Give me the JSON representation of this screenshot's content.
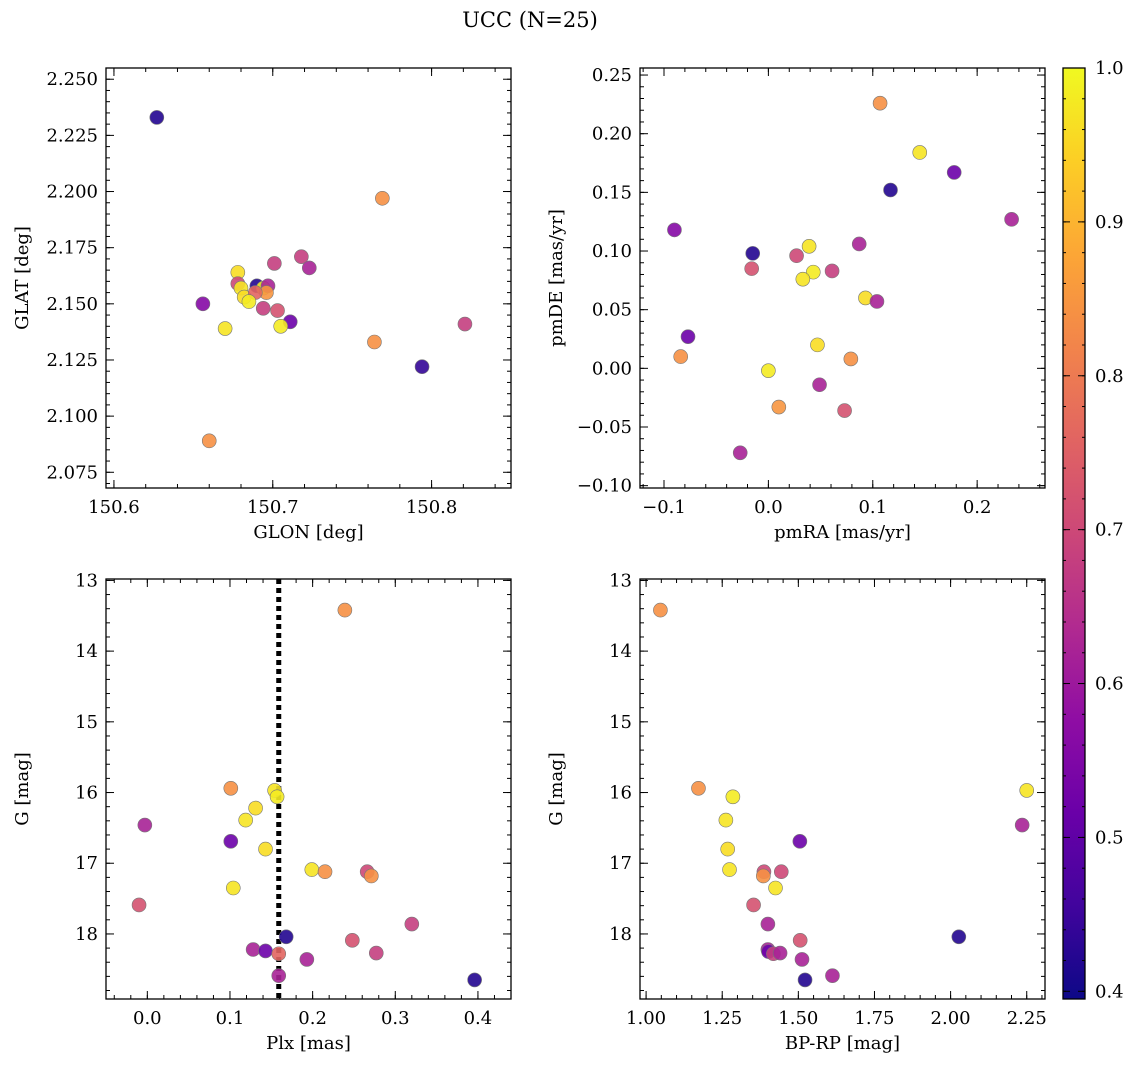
{
  "figure": {
    "title": "UCC (N=25)"
  },
  "colorbar": {
    "colormap": "plasma",
    "range": [
      0.395,
      1.0
    ],
    "ticks": [
      0.4,
      0.5,
      0.6,
      0.7,
      0.8,
      0.9,
      1.0
    ],
    "tick_labels": [
      "0.4",
      "0.5",
      "0.6",
      "0.7",
      "0.8",
      "0.9",
      "1.0"
    ]
  },
  "chart_data": [
    {
      "type": "scatter",
      "id": "sky",
      "title": "",
      "xlabel": "GLON [deg]",
      "ylabel": "GLAT [deg]",
      "xlim": [
        150.595,
        150.85
      ],
      "ylim": [
        2.068,
        2.255
      ],
      "xticks": [
        150.6,
        150.7,
        150.8
      ],
      "xtick_labels": [
        "150.6",
        "150.7",
        "150.8"
      ],
      "yticks": [
        2.075,
        2.1,
        2.125,
        2.15,
        2.175,
        2.2,
        2.225,
        2.25
      ],
      "ytick_labels": [
        "2.075",
        "2.100",
        "2.125",
        "2.150",
        "2.175",
        "2.200",
        "2.225",
        "2.250"
      ],
      "points": [
        {
          "x": 150.627,
          "y": 2.233,
          "c": 0.42
        },
        {
          "x": 150.769,
          "y": 2.197,
          "c": 0.84
        },
        {
          "x": 150.718,
          "y": 2.171,
          "c": 0.68
        },
        {
          "x": 150.723,
          "y": 2.166,
          "c": 0.62
        },
        {
          "x": 150.701,
          "y": 2.168,
          "c": 0.68
        },
        {
          "x": 150.678,
          "y": 2.164,
          "c": 0.96
        },
        {
          "x": 150.678,
          "y": 2.159,
          "c": 0.7
        },
        {
          "x": 150.68,
          "y": 2.157,
          "c": 0.97
        },
        {
          "x": 150.69,
          "y": 2.158,
          "c": 0.42
        },
        {
          "x": 150.694,
          "y": 2.157,
          "c": 0.98
        },
        {
          "x": 150.697,
          "y": 2.158,
          "c": 0.62
        },
        {
          "x": 150.682,
          "y": 2.153,
          "c": 0.96
        },
        {
          "x": 150.696,
          "y": 2.155,
          "c": 0.85
        },
        {
          "x": 150.689,
          "y": 2.155,
          "c": 0.76
        },
        {
          "x": 150.685,
          "y": 2.151,
          "c": 0.98
        },
        {
          "x": 150.656,
          "y": 2.15,
          "c": 0.56
        },
        {
          "x": 150.694,
          "y": 2.148,
          "c": 0.68
        },
        {
          "x": 150.703,
          "y": 2.147,
          "c": 0.72
        },
        {
          "x": 150.711,
          "y": 2.142,
          "c": 0.52
        },
        {
          "x": 150.705,
          "y": 2.14,
          "c": 0.98
        },
        {
          "x": 150.67,
          "y": 2.139,
          "c": 0.97
        },
        {
          "x": 150.821,
          "y": 2.141,
          "c": 0.68
        },
        {
          "x": 150.764,
          "y": 2.133,
          "c": 0.84
        },
        {
          "x": 150.794,
          "y": 2.122,
          "c": 0.44
        },
        {
          "x": 150.66,
          "y": 2.089,
          "c": 0.84
        }
      ]
    },
    {
      "type": "scatter",
      "id": "pm",
      "title": "",
      "xlabel": "pmRA [mas/yr]",
      "ylabel": "pmDE [mas/yr]",
      "xlim": [
        -0.123,
        0.265
      ],
      "ylim": [
        -0.102,
        0.256
      ],
      "xticks": [
        -0.1,
        0.0,
        0.1,
        0.2
      ],
      "xtick_labels": [
        "−0.1",
        "0.0",
        "0.1",
        "0.2"
      ],
      "yticks": [
        -0.1,
        -0.05,
        0.0,
        0.05,
        0.1,
        0.15,
        0.2,
        0.25
      ],
      "ytick_labels": [
        "−0.10",
        "−0.05",
        "0.00",
        "0.05",
        "0.10",
        "0.15",
        "0.20",
        "0.25"
      ],
      "points": [
        {
          "x": 0.107,
          "y": 0.226,
          "c": 0.84
        },
        {
          "x": 0.145,
          "y": 0.184,
          "c": 0.97
        },
        {
          "x": 0.178,
          "y": 0.167,
          "c": 0.52
        },
        {
          "x": 0.117,
          "y": 0.152,
          "c": 0.42
        },
        {
          "x": 0.233,
          "y": 0.127,
          "c": 0.62
        },
        {
          "x": -0.09,
          "y": 0.118,
          "c": 0.56
        },
        {
          "x": 0.087,
          "y": 0.106,
          "c": 0.62
        },
        {
          "x": 0.039,
          "y": 0.104,
          "c": 0.97
        },
        {
          "x": -0.015,
          "y": 0.098,
          "c": 0.42
        },
        {
          "x": 0.027,
          "y": 0.096,
          "c": 0.7
        },
        {
          "x": -0.016,
          "y": 0.085,
          "c": 0.72
        },
        {
          "x": 0.061,
          "y": 0.083,
          "c": 0.68
        },
        {
          "x": 0.043,
          "y": 0.082,
          "c": 0.98
        },
        {
          "x": 0.033,
          "y": 0.076,
          "c": 0.97
        },
        {
          "x": 0.093,
          "y": 0.06,
          "c": 0.96
        },
        {
          "x": 0.104,
          "y": 0.057,
          "c": 0.62
        },
        {
          "x": -0.077,
          "y": 0.027,
          "c": 0.52
        },
        {
          "x": 0.047,
          "y": 0.02,
          "c": 0.96
        },
        {
          "x": -0.084,
          "y": 0.01,
          "c": 0.84
        },
        {
          "x": 0.079,
          "y": 0.008,
          "c": 0.84
        },
        {
          "x": 0.0,
          "y": -0.002,
          "c": 0.98
        },
        {
          "x": 0.049,
          "y": -0.014,
          "c": 0.62
        },
        {
          "x": 0.01,
          "y": -0.033,
          "c": 0.85
        },
        {
          "x": 0.073,
          "y": -0.036,
          "c": 0.72
        },
        {
          "x": -0.027,
          "y": -0.072,
          "c": 0.62
        }
      ]
    },
    {
      "type": "scatter",
      "id": "plx",
      "title": "",
      "xlabel": "Plx [mas]",
      "ylabel": "G [mag]",
      "xlim": [
        -0.05,
        0.44
      ],
      "ylim": [
        18.92,
        12.98
      ],
      "inverted_y": true,
      "xticks": [
        0.0,
        0.1,
        0.2,
        0.3,
        0.4
      ],
      "xtick_labels": [
        "0.0",
        "0.1",
        "0.2",
        "0.3",
        "0.4"
      ],
      "yticks": [
        13,
        14,
        15,
        16,
        17,
        18
      ],
      "ytick_labels": [
        "13",
        "14",
        "15",
        "16",
        "17",
        "18"
      ],
      "vline": {
        "x": 0.159,
        "style": "dotted"
      },
      "points": [
        {
          "x": 0.239,
          "y": 13.42,
          "c": 0.84
        },
        {
          "x": 0.101,
          "y": 15.94,
          "c": 0.84
        },
        {
          "x": 0.154,
          "y": 15.97,
          "c": 0.97
        },
        {
          "x": 0.157,
          "y": 16.06,
          "c": 0.98
        },
        {
          "x": 0.131,
          "y": 16.22,
          "c": 0.96
        },
        {
          "x": 0.119,
          "y": 16.39,
          "c": 0.97
        },
        {
          "x": -0.003,
          "y": 16.46,
          "c": 0.62
        },
        {
          "x": 0.101,
          "y": 16.69,
          "c": 0.52
        },
        {
          "x": 0.143,
          "y": 16.8,
          "c": 0.96
        },
        {
          "x": 0.199,
          "y": 17.09,
          "c": 0.97
        },
        {
          "x": 0.215,
          "y": 17.12,
          "c": 0.84
        },
        {
          "x": 0.266,
          "y": 17.12,
          "c": 0.7
        },
        {
          "x": 0.271,
          "y": 17.18,
          "c": 0.84
        },
        {
          "x": 0.104,
          "y": 17.35,
          "c": 0.97
        },
        {
          "x": -0.01,
          "y": 17.59,
          "c": 0.72
        },
        {
          "x": 0.32,
          "y": 17.86,
          "c": 0.68
        },
        {
          "x": 0.168,
          "y": 18.04,
          "c": 0.42
        },
        {
          "x": 0.248,
          "y": 18.09,
          "c": 0.72
        },
        {
          "x": 0.128,
          "y": 18.22,
          "c": 0.62
        },
        {
          "x": 0.143,
          "y": 18.24,
          "c": 0.52
        },
        {
          "x": 0.159,
          "y": 18.28,
          "c": 0.76
        },
        {
          "x": 0.277,
          "y": 18.27,
          "c": 0.68
        },
        {
          "x": 0.193,
          "y": 18.36,
          "c": 0.62
        },
        {
          "x": 0.159,
          "y": 18.59,
          "c": 0.62
        },
        {
          "x": 0.396,
          "y": 18.65,
          "c": 0.42
        }
      ]
    },
    {
      "type": "scatter",
      "id": "cmd",
      "title": "",
      "xlabel": "BP-RP [mag]",
      "ylabel": "G [mag]",
      "xlim": [
        0.98,
        2.31
      ],
      "ylim": [
        18.92,
        12.98
      ],
      "inverted_y": true,
      "xticks": [
        1.0,
        1.25,
        1.5,
        1.75,
        2.0,
        2.25
      ],
      "xtick_labels": [
        "1.00",
        "1.25",
        "1.50",
        "1.75",
        "2.00",
        "2.25"
      ],
      "yticks": [
        13,
        14,
        15,
        16,
        17,
        18
      ],
      "ytick_labels": [
        "13",
        "14",
        "15",
        "16",
        "17",
        "18"
      ],
      "points": [
        {
          "x": 1.047,
          "y": 13.42,
          "c": 0.84
        },
        {
          "x": 1.172,
          "y": 15.94,
          "c": 0.84
        },
        {
          "x": 2.25,
          "y": 15.97,
          "c": 0.97
        },
        {
          "x": 1.285,
          "y": 16.06,
          "c": 0.98
        },
        {
          "x": 1.262,
          "y": 16.39,
          "c": 0.97
        },
        {
          "x": 2.235,
          "y": 16.46,
          "c": 0.62
        },
        {
          "x": 1.505,
          "y": 16.69,
          "c": 0.52
        },
        {
          "x": 1.268,
          "y": 16.8,
          "c": 0.96
        },
        {
          "x": 1.274,
          "y": 17.09,
          "c": 0.97
        },
        {
          "x": 1.387,
          "y": 17.12,
          "c": 0.7
        },
        {
          "x": 1.385,
          "y": 17.18,
          "c": 0.84
        },
        {
          "x": 1.444,
          "y": 17.12,
          "c": 0.7
        },
        {
          "x": 1.425,
          "y": 17.35,
          "c": 0.97
        },
        {
          "x": 1.353,
          "y": 17.59,
          "c": 0.72
        },
        {
          "x": 1.4,
          "y": 17.86,
          "c": 0.62
        },
        {
          "x": 2.027,
          "y": 18.04,
          "c": 0.42
        },
        {
          "x": 1.506,
          "y": 18.09,
          "c": 0.72
        },
        {
          "x": 1.4,
          "y": 18.22,
          "c": 0.62
        },
        {
          "x": 1.402,
          "y": 18.25,
          "c": 0.52
        },
        {
          "x": 1.418,
          "y": 18.28,
          "c": 0.68
        },
        {
          "x": 1.44,
          "y": 18.27,
          "c": 0.62
        },
        {
          "x": 1.512,
          "y": 18.36,
          "c": 0.62
        },
        {
          "x": 1.612,
          "y": 18.59,
          "c": 0.62
        },
        {
          "x": 1.522,
          "y": 18.65,
          "c": 0.42
        }
      ]
    }
  ]
}
